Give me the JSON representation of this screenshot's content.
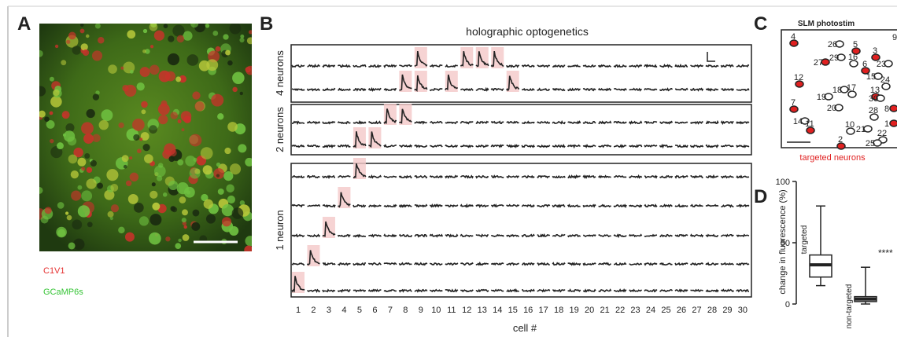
{
  "panel_labels": {
    "a": "A",
    "b": "B",
    "c": "C",
    "d": "D"
  },
  "panel_a": {
    "legend": [
      "C1V1",
      "GCaMP6s"
    ]
  },
  "panel_b": {
    "title": "holographic optogenetics",
    "x_label": "cell #",
    "cells": [
      1,
      2,
      3,
      4,
      5,
      6,
      7,
      8,
      9,
      10,
      11,
      12,
      13,
      14,
      15,
      16,
      17,
      18,
      19,
      20,
      21,
      22,
      23,
      24,
      25,
      26,
      27,
      28,
      29,
      30
    ],
    "groups": [
      {
        "label": "4 neurons",
        "rows": [
          [
            9,
            12,
            13,
            14
          ],
          [
            8,
            9,
            11,
            15
          ]
        ]
      },
      {
        "label": "2 neurons",
        "rows": [
          [
            7,
            8
          ],
          [
            5,
            6
          ]
        ]
      },
      {
        "label": "1 neuron",
        "rows": [
          [
            5
          ],
          [
            4
          ],
          [
            3
          ],
          [
            2
          ],
          [
            1
          ]
        ]
      }
    ]
  },
  "panel_c": {
    "title": "SLM photostim",
    "caption": "targeted neurons",
    "cells": [
      4,
      26,
      5,
      9,
      3,
      29,
      16,
      27,
      6,
      23,
      12,
      15,
      24,
      18,
      17,
      19,
      13,
      30,
      7,
      20,
      28,
      8,
      10,
      14,
      11,
      21,
      22,
      1,
      2,
      25
    ]
  },
  "panel_d": {
    "y_label": "change in fluorescence (%)",
    "ylim": [
      0,
      100
    ],
    "yticks": [
      0,
      50,
      100
    ],
    "groups": [
      {
        "label": "targeted",
        "min": 15,
        "q1": 22,
        "median": 32,
        "q3": 40,
        "max": 80
      },
      {
        "label": "non-targeted",
        "min": 0,
        "q1": 2,
        "median": 4,
        "q3": 6,
        "max": 30,
        "significance": "****"
      }
    ]
  }
}
